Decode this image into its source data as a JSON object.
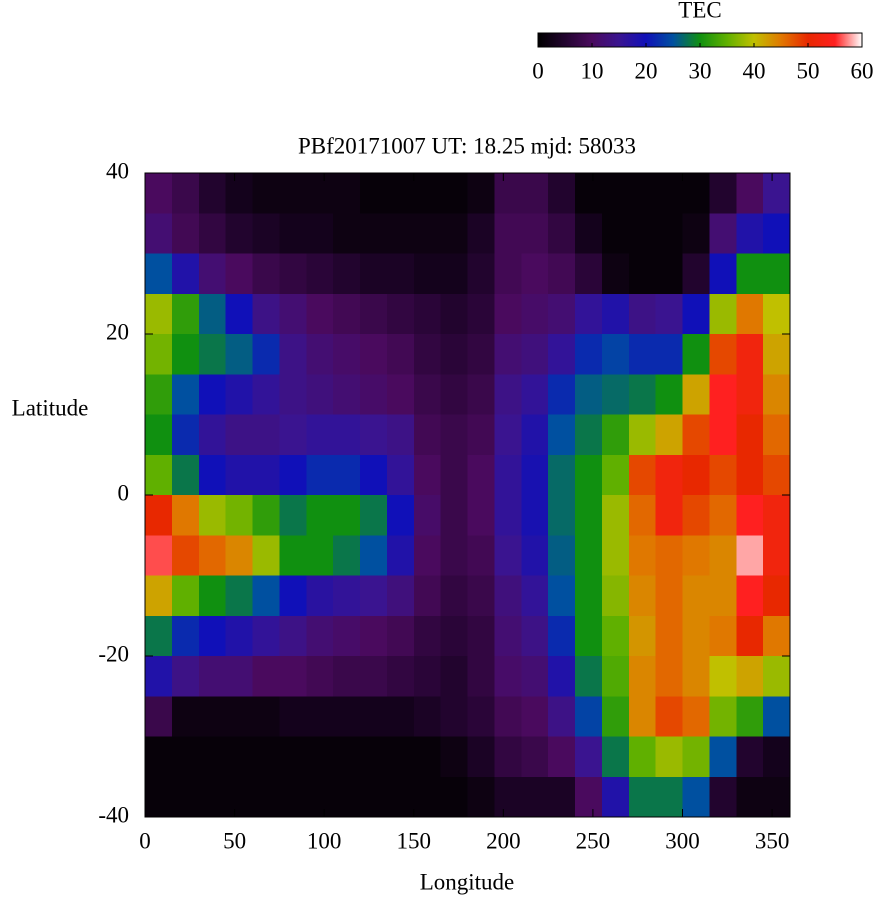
{
  "chart_data": {
    "type": "heatmap",
    "title": "PBf20171007  UT: 18.25  mjd: 58033",
    "xlabel": "Longitude",
    "ylabel": "Latitude",
    "xlim": [
      0,
      360
    ],
    "ylim": [
      -40,
      40
    ],
    "xticks": [
      0,
      50,
      100,
      150,
      200,
      250,
      300,
      350
    ],
    "yticks": [
      -40,
      -20,
      0,
      20,
      40
    ],
    "colorbar": {
      "label": "TEC",
      "lim": [
        0,
        60
      ],
      "ticks": [
        0,
        10,
        20,
        30,
        40,
        50,
        60
      ],
      "colors": [
        "#000000",
        "#22042e",
        "#4a0a5e",
        "#3a1490",
        "#1010b8",
        "#0050a0",
        "#109010",
        "#60b000",
        "#c0c000",
        "#e07800",
        "#e82800",
        "#ff2020",
        "#ffffff"
      ]
    },
    "z": [
      [
        10,
        8,
        5,
        3,
        2,
        2,
        2,
        2,
        1,
        1,
        1,
        1,
        2,
        8,
        8,
        5,
        1,
        1,
        1,
        1,
        1,
        5,
        10,
        15
      ],
      [
        12,
        9,
        7,
        5,
        4,
        3,
        3,
        2,
        2,
        2,
        2,
        2,
        4,
        9,
        9,
        7,
        3,
        1,
        1,
        1,
        2,
        12,
        18,
        20
      ],
      [
        25,
        18,
        12,
        10,
        8,
        7,
        6,
        5,
        4,
        4,
        3,
        3,
        5,
        9,
        10,
        9,
        6,
        2,
        1,
        1,
        5,
        20,
        30,
        30
      ],
      [
        38,
        32,
        26,
        20,
        14,
        12,
        10,
        9,
        8,
        7,
        6,
        5,
        6,
        10,
        11,
        12,
        16,
        18,
        14,
        15,
        20,
        38,
        45,
        40
      ],
      [
        36,
        30,
        28,
        26,
        22,
        14,
        12,
        11,
        10,
        9,
        7,
        6,
        7,
        12,
        13,
        16,
        22,
        24,
        22,
        22,
        30,
        48,
        52,
        42
      ],
      [
        32,
        25,
        20,
        18,
        16,
        14,
        13,
        12,
        11,
        10,
        8,
        7,
        8,
        14,
        16,
        22,
        26,
        27,
        28,
        30,
        42,
        55,
        52,
        44
      ],
      [
        30,
        22,
        16,
        14,
        14,
        15,
        16,
        16,
        15,
        14,
        9,
        8,
        9,
        15,
        18,
        25,
        28,
        32,
        38,
        42,
        48,
        55,
        50,
        46
      ],
      [
        35,
        28,
        20,
        18,
        18,
        20,
        22,
        22,
        20,
        16,
        10,
        8,
        10,
        16,
        19,
        27,
        30,
        35,
        48,
        52,
        50,
        48,
        50,
        48
      ],
      [
        50,
        45,
        38,
        36,
        32,
        28,
        30,
        30,
        28,
        20,
        11,
        8,
        10,
        16,
        19,
        27,
        30,
        38,
        46,
        52,
        48,
        46,
        55,
        52
      ],
      [
        56,
        48,
        46,
        44,
        38,
        30,
        30,
        28,
        25,
        18,
        10,
        8,
        9,
        15,
        18,
        26,
        30,
        38,
        45,
        46,
        45,
        44,
        58,
        52
      ],
      [
        42,
        35,
        30,
        28,
        25,
        20,
        17,
        16,
        15,
        13,
        9,
        7,
        8,
        13,
        16,
        25,
        30,
        37,
        44,
        46,
        44,
        44,
        55,
        50
      ],
      [
        28,
        22,
        20,
        18,
        16,
        14,
        12,
        11,
        10,
        9,
        7,
        6,
        7,
        12,
        14,
        22,
        30,
        35,
        43,
        46,
        44,
        45,
        50,
        45
      ],
      [
        18,
        14,
        12,
        12,
        10,
        10,
        9,
        8,
        8,
        7,
        6,
        5,
        7,
        11,
        12,
        18,
        28,
        34,
        44,
        46,
        44,
        40,
        42,
        38
      ],
      [
        8,
        2,
        2,
        2,
        2,
        3,
        3,
        3,
        3,
        3,
        4,
        5,
        6,
        9,
        10,
        14,
        24,
        32,
        44,
        48,
        46,
        36,
        32,
        25
      ],
      [
        1,
        1,
        1,
        1,
        1,
        1,
        1,
        1,
        1,
        1,
        1,
        2,
        4,
        7,
        8,
        10,
        15,
        28,
        35,
        38,
        36,
        25,
        5,
        3
      ],
      [
        1,
        1,
        1,
        1,
        1,
        1,
        1,
        1,
        1,
        1,
        1,
        1,
        2,
        4,
        4,
        4,
        10,
        18,
        28,
        28,
        25,
        5,
        2,
        2
      ]
    ]
  }
}
